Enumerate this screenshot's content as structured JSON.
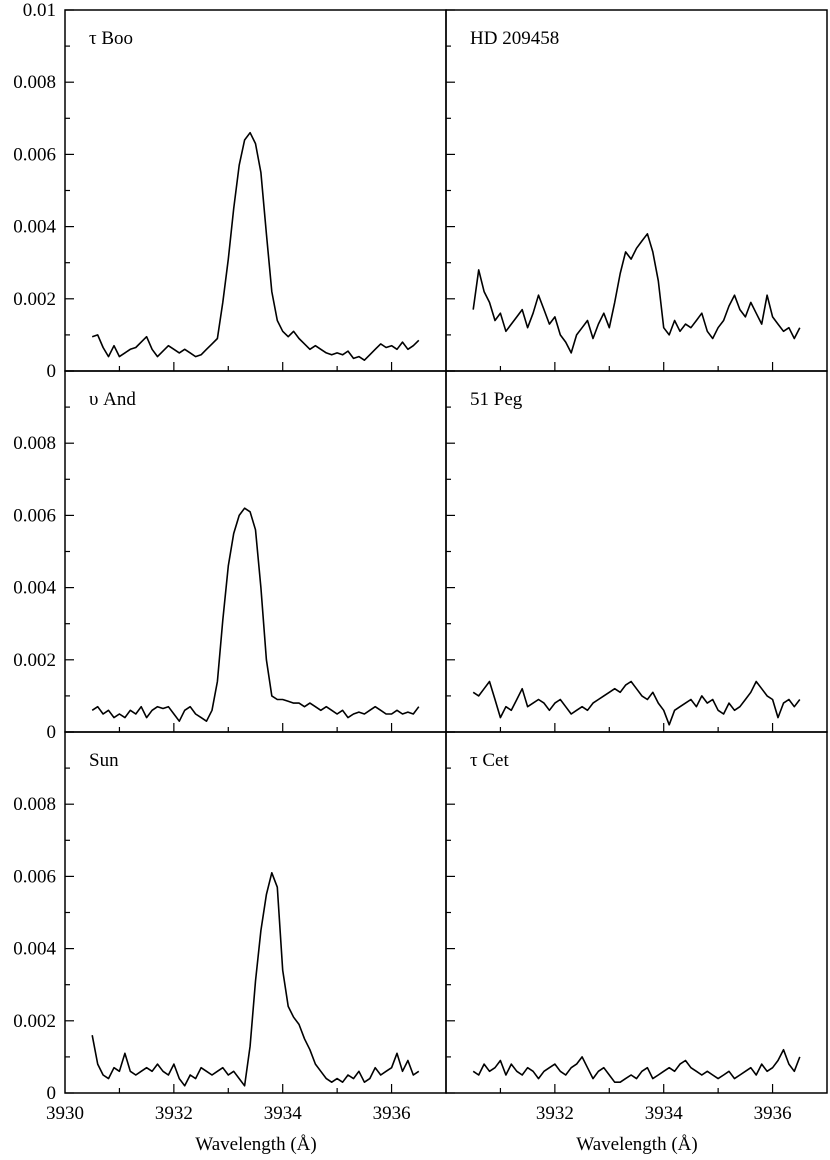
{
  "chart_data": {
    "type": "line",
    "layout": "3x2 grid of panels sharing axes",
    "xlabel": "Wavelength (Å)",
    "xlim": [
      3930,
      3937
    ],
    "ylim": [
      0,
      0.01
    ],
    "y_ticks": [
      "0",
      "0.002",
      "0.004",
      "0.006",
      "0.008",
      "0.01"
    ],
    "x_ticks_left": [
      "3930",
      "3932",
      "3934",
      "3936"
    ],
    "x_ticks_right": [
      "3932",
      "3934",
      "3936"
    ],
    "line_color": "#000000",
    "panels": [
      {
        "label": "τ Boo",
        "position": "top-left",
        "x": [
          3930.5,
          3930.6,
          3930.7,
          3930.8,
          3930.9,
          3931.0,
          3931.1,
          3931.2,
          3931.3,
          3931.4,
          3931.5,
          3931.6,
          3931.7,
          3931.8,
          3931.9,
          3932.0,
          3932.1,
          3932.2,
          3932.3,
          3932.4,
          3932.5,
          3932.6,
          3932.7,
          3932.8,
          3932.9,
          3933.0,
          3933.1,
          3933.2,
          3933.3,
          3933.4,
          3933.5,
          3933.6,
          3933.7,
          3933.8,
          3933.9,
          3934.0,
          3934.1,
          3934.2,
          3934.3,
          3934.4,
          3934.5,
          3934.6,
          3934.7,
          3934.8,
          3934.9,
          3935.0,
          3935.1,
          3935.2,
          3935.3,
          3935.4,
          3935.5,
          3935.6,
          3935.7,
          3935.8,
          3935.9,
          3936.0,
          3936.1,
          3936.2,
          3936.3,
          3936.4,
          3936.5
        ],
        "y": [
          0.00095,
          0.001,
          0.00065,
          0.0004,
          0.0007,
          0.0004,
          0.0005,
          0.0006,
          0.00065,
          0.0008,
          0.00095,
          0.0006,
          0.0004,
          0.00055,
          0.0007,
          0.0006,
          0.0005,
          0.0006,
          0.0005,
          0.0004,
          0.00045,
          0.0006,
          0.00075,
          0.0009,
          0.0019,
          0.0031,
          0.0045,
          0.0057,
          0.0064,
          0.0066,
          0.0063,
          0.0055,
          0.0038,
          0.0022,
          0.0014,
          0.0011,
          0.00095,
          0.0011,
          0.0009,
          0.00075,
          0.0006,
          0.0007,
          0.0006,
          0.0005,
          0.00045,
          0.0005,
          0.00045,
          0.00055,
          0.00035,
          0.0004,
          0.0003,
          0.00045,
          0.0006,
          0.00075,
          0.00065,
          0.0007,
          0.0006,
          0.0008,
          0.0006,
          0.0007,
          0.00085
        ]
      },
      {
        "label": "HD 209458",
        "position": "top-right",
        "x": [
          3930.5,
          3930.6,
          3930.7,
          3930.8,
          3930.9,
          3931.0,
          3931.1,
          3931.2,
          3931.3,
          3931.4,
          3931.5,
          3931.6,
          3931.7,
          3931.8,
          3931.9,
          3932.0,
          3932.1,
          3932.2,
          3932.3,
          3932.4,
          3932.5,
          3932.6,
          3932.7,
          3932.8,
          3932.9,
          3933.0,
          3933.1,
          3933.2,
          3933.3,
          3933.4,
          3933.5,
          3933.6,
          3933.7,
          3933.8,
          3933.9,
          3934.0,
          3934.1,
          3934.2,
          3934.3,
          3934.4,
          3934.5,
          3934.6,
          3934.7,
          3934.8,
          3934.9,
          3935.0,
          3935.1,
          3935.2,
          3935.3,
          3935.4,
          3935.5,
          3935.6,
          3935.7,
          3935.8,
          3935.9,
          3936.0,
          3936.1,
          3936.2,
          3936.3,
          3936.4,
          3936.5
        ],
        "y": [
          0.0017,
          0.0028,
          0.0022,
          0.0019,
          0.0014,
          0.0016,
          0.0011,
          0.0013,
          0.0015,
          0.0017,
          0.0012,
          0.0016,
          0.0021,
          0.0017,
          0.0013,
          0.0015,
          0.001,
          0.0008,
          0.0005,
          0.001,
          0.0012,
          0.0014,
          0.0009,
          0.0013,
          0.0016,
          0.0012,
          0.0019,
          0.0027,
          0.0033,
          0.0031,
          0.0034,
          0.0036,
          0.0038,
          0.0033,
          0.0025,
          0.0012,
          0.001,
          0.0014,
          0.0011,
          0.0013,
          0.0012,
          0.0014,
          0.0016,
          0.0011,
          0.0009,
          0.0012,
          0.0014,
          0.0018,
          0.0021,
          0.0017,
          0.0015,
          0.0019,
          0.0016,
          0.0013,
          0.0021,
          0.0015,
          0.0013,
          0.0011,
          0.0012,
          0.0009,
          0.0012
        ]
      },
      {
        "label": "υ And",
        "position": "middle-left",
        "x": [
          3930.5,
          3930.6,
          3930.7,
          3930.8,
          3930.9,
          3931.0,
          3931.1,
          3931.2,
          3931.3,
          3931.4,
          3931.5,
          3931.6,
          3931.7,
          3931.8,
          3931.9,
          3932.0,
          3932.1,
          3932.2,
          3932.3,
          3932.4,
          3932.5,
          3932.6,
          3932.7,
          3932.8,
          3932.9,
          3933.0,
          3933.1,
          3933.2,
          3933.3,
          3933.4,
          3933.5,
          3933.6,
          3933.7,
          3933.8,
          3933.9,
          3934.0,
          3934.1,
          3934.2,
          3934.3,
          3934.4,
          3934.5,
          3934.6,
          3934.7,
          3934.8,
          3934.9,
          3935.0,
          3935.1,
          3935.2,
          3935.3,
          3935.4,
          3935.5,
          3935.6,
          3935.7,
          3935.8,
          3935.9,
          3936.0,
          3936.1,
          3936.2,
          3936.3,
          3936.4,
          3936.5
        ],
        "y": [
          0.0006,
          0.0007,
          0.0005,
          0.0006,
          0.0004,
          0.0005,
          0.0004,
          0.0006,
          0.0005,
          0.0007,
          0.0004,
          0.0006,
          0.0007,
          0.00065,
          0.0007,
          0.0005,
          0.0003,
          0.0006,
          0.0007,
          0.0005,
          0.0004,
          0.0003,
          0.0006,
          0.0014,
          0.0031,
          0.0046,
          0.0055,
          0.006,
          0.0062,
          0.0061,
          0.0056,
          0.004,
          0.002,
          0.001,
          0.0009,
          0.0009,
          0.00085,
          0.0008,
          0.0008,
          0.0007,
          0.0008,
          0.0007,
          0.0006,
          0.0007,
          0.0006,
          0.0005,
          0.0006,
          0.0004,
          0.0005,
          0.00055,
          0.0005,
          0.0006,
          0.0007,
          0.0006,
          0.0005,
          0.0005,
          0.0006,
          0.0005,
          0.00055,
          0.0005,
          0.0007
        ]
      },
      {
        "label": "51 Peg",
        "position": "middle-right",
        "x": [
          3930.5,
          3930.6,
          3930.7,
          3930.8,
          3930.9,
          3931.0,
          3931.1,
          3931.2,
          3931.3,
          3931.4,
          3931.5,
          3931.6,
          3931.7,
          3931.8,
          3931.9,
          3932.0,
          3932.1,
          3932.2,
          3932.3,
          3932.4,
          3932.5,
          3932.6,
          3932.7,
          3932.8,
          3932.9,
          3933.0,
          3933.1,
          3933.2,
          3933.3,
          3933.4,
          3933.5,
          3933.6,
          3933.7,
          3933.8,
          3933.9,
          3934.0,
          3934.1,
          3934.2,
          3934.3,
          3934.4,
          3934.5,
          3934.6,
          3934.7,
          3934.8,
          3934.9,
          3935.0,
          3935.1,
          3935.2,
          3935.3,
          3935.4,
          3935.5,
          3935.6,
          3935.7,
          3935.8,
          3935.9,
          3936.0,
          3936.1,
          3936.2,
          3936.3,
          3936.4,
          3936.5
        ],
        "y": [
          0.0011,
          0.001,
          0.0012,
          0.0014,
          0.0009,
          0.0004,
          0.0007,
          0.0006,
          0.0009,
          0.0012,
          0.0007,
          0.0008,
          0.0009,
          0.0008,
          0.0006,
          0.0008,
          0.0009,
          0.0007,
          0.0005,
          0.0006,
          0.0007,
          0.0006,
          0.0008,
          0.0009,
          0.001,
          0.0011,
          0.0012,
          0.0011,
          0.0013,
          0.0014,
          0.0012,
          0.001,
          0.0009,
          0.0011,
          0.0008,
          0.0006,
          0.0002,
          0.0006,
          0.0007,
          0.0008,
          0.0009,
          0.0007,
          0.001,
          0.0008,
          0.0009,
          0.0006,
          0.0005,
          0.0008,
          0.0006,
          0.0007,
          0.0009,
          0.0011,
          0.0014,
          0.0012,
          0.001,
          0.0009,
          0.0004,
          0.0008,
          0.0009,
          0.0007,
          0.0009
        ]
      },
      {
        "label": "Sun",
        "position": "bottom-left",
        "x": [
          3930.5,
          3930.6,
          3930.7,
          3930.8,
          3930.9,
          3931.0,
          3931.1,
          3931.2,
          3931.3,
          3931.4,
          3931.5,
          3931.6,
          3931.7,
          3931.8,
          3931.9,
          3932.0,
          3932.1,
          3932.2,
          3932.3,
          3932.4,
          3932.5,
          3932.6,
          3932.7,
          3932.8,
          3932.9,
          3933.0,
          3933.1,
          3933.2,
          3933.3,
          3933.4,
          3933.5,
          3933.6,
          3933.7,
          3933.8,
          3933.9,
          3934.0,
          3934.1,
          3934.2,
          3934.3,
          3934.4,
          3934.5,
          3934.6,
          3934.7,
          3934.8,
          3934.9,
          3935.0,
          3935.1,
          3935.2,
          3935.3,
          3935.4,
          3935.5,
          3935.6,
          3935.7,
          3935.8,
          3935.9,
          3936.0,
          3936.1,
          3936.2,
          3936.3,
          3936.4,
          3936.5
        ],
        "y": [
          0.0016,
          0.0008,
          0.0005,
          0.0004,
          0.0007,
          0.0006,
          0.0011,
          0.0006,
          0.0005,
          0.0006,
          0.0007,
          0.0006,
          0.0008,
          0.0006,
          0.0005,
          0.0008,
          0.0004,
          0.0002,
          0.0005,
          0.0004,
          0.0007,
          0.0006,
          0.0005,
          0.0006,
          0.0007,
          0.0005,
          0.0006,
          0.0004,
          0.0002,
          0.0013,
          0.0031,
          0.0045,
          0.0055,
          0.0061,
          0.0057,
          0.0034,
          0.0024,
          0.0021,
          0.0019,
          0.0015,
          0.0012,
          0.0008,
          0.0006,
          0.0004,
          0.0003,
          0.0004,
          0.0003,
          0.0005,
          0.0004,
          0.0006,
          0.0003,
          0.0004,
          0.0007,
          0.0005,
          0.0006,
          0.0007,
          0.0011,
          0.0006,
          0.0009,
          0.0005,
          0.0006
        ]
      },
      {
        "label": "τ Cet",
        "position": "bottom-right",
        "x": [
          3930.5,
          3930.6,
          3930.7,
          3930.8,
          3930.9,
          3931.0,
          3931.1,
          3931.2,
          3931.3,
          3931.4,
          3931.5,
          3931.6,
          3931.7,
          3931.8,
          3931.9,
          3932.0,
          3932.1,
          3932.2,
          3932.3,
          3932.4,
          3932.5,
          3932.6,
          3932.7,
          3932.8,
          3932.9,
          3933.0,
          3933.1,
          3933.2,
          3933.3,
          3933.4,
          3933.5,
          3933.6,
          3933.7,
          3933.8,
          3933.9,
          3934.0,
          3934.1,
          3934.2,
          3934.3,
          3934.4,
          3934.5,
          3934.6,
          3934.7,
          3934.8,
          3934.9,
          3935.0,
          3935.1,
          3935.2,
          3935.3,
          3935.4,
          3935.5,
          3935.6,
          3935.7,
          3935.8,
          3935.9,
          3936.0,
          3936.1,
          3936.2,
          3936.3,
          3936.4,
          3936.5
        ],
        "y": [
          0.0006,
          0.0005,
          0.0008,
          0.0006,
          0.0007,
          0.0009,
          0.0005,
          0.0008,
          0.0006,
          0.0005,
          0.0007,
          0.0006,
          0.0004,
          0.0006,
          0.0007,
          0.0008,
          0.0006,
          0.0005,
          0.0007,
          0.0008,
          0.001,
          0.0007,
          0.0004,
          0.0006,
          0.0007,
          0.0005,
          0.0003,
          0.0003,
          0.0004,
          0.0005,
          0.0004,
          0.0006,
          0.0007,
          0.0004,
          0.0005,
          0.0006,
          0.0007,
          0.0006,
          0.0008,
          0.0009,
          0.0007,
          0.0006,
          0.0005,
          0.0006,
          0.0005,
          0.0004,
          0.0005,
          0.0006,
          0.0004,
          0.0005,
          0.0006,
          0.0007,
          0.0005,
          0.0008,
          0.0006,
          0.0007,
          0.0009,
          0.0012,
          0.0008,
          0.0006,
          0.001
        ]
      }
    ]
  }
}
